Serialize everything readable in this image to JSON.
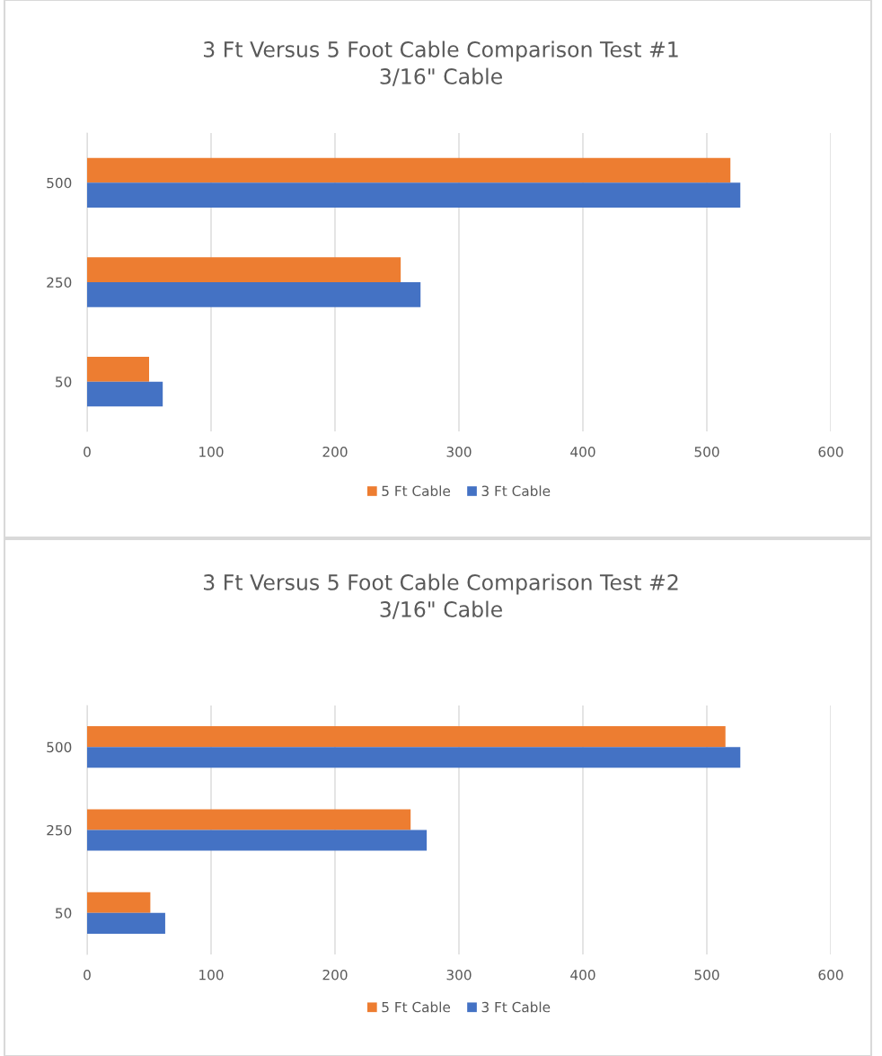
{
  "chart_data": [
    {
      "type": "bar",
      "orientation": "horizontal",
      "title": "3 Ft Versus 5 Foot Cable Comparison Test #1\n3/16\" Cable",
      "categories": [
        "500",
        "250",
        "50"
      ],
      "series": [
        {
          "name": "5 Ft Cable",
          "color": "#ed7d31",
          "values": [
            519,
            253,
            50
          ]
        },
        {
          "name": "3 Ft Cable",
          "color": "#4472c4",
          "values": [
            527,
            269,
            61
          ]
        }
      ],
      "xlim": [
        0,
        600
      ],
      "xticks": [
        0,
        100,
        200,
        300,
        400,
        500,
        600
      ],
      "grid": "x",
      "legend": "bottom"
    },
    {
      "type": "bar",
      "orientation": "horizontal",
      "title": "3 Ft Versus 5 Foot Cable Comparison Test #2\n3/16\" Cable",
      "categories": [
        "500",
        "250",
        "50"
      ],
      "series": [
        {
          "name": "5 Ft Cable",
          "color": "#ed7d31",
          "values": [
            515,
            261,
            51
          ]
        },
        {
          "name": "3 Ft Cable",
          "color": "#4472c4",
          "values": [
            527,
            274,
            63
          ]
        }
      ],
      "xlim": [
        0,
        600
      ],
      "xticks": [
        0,
        100,
        200,
        300,
        400,
        500,
        600
      ],
      "grid": "x",
      "legend": "bottom"
    }
  ]
}
